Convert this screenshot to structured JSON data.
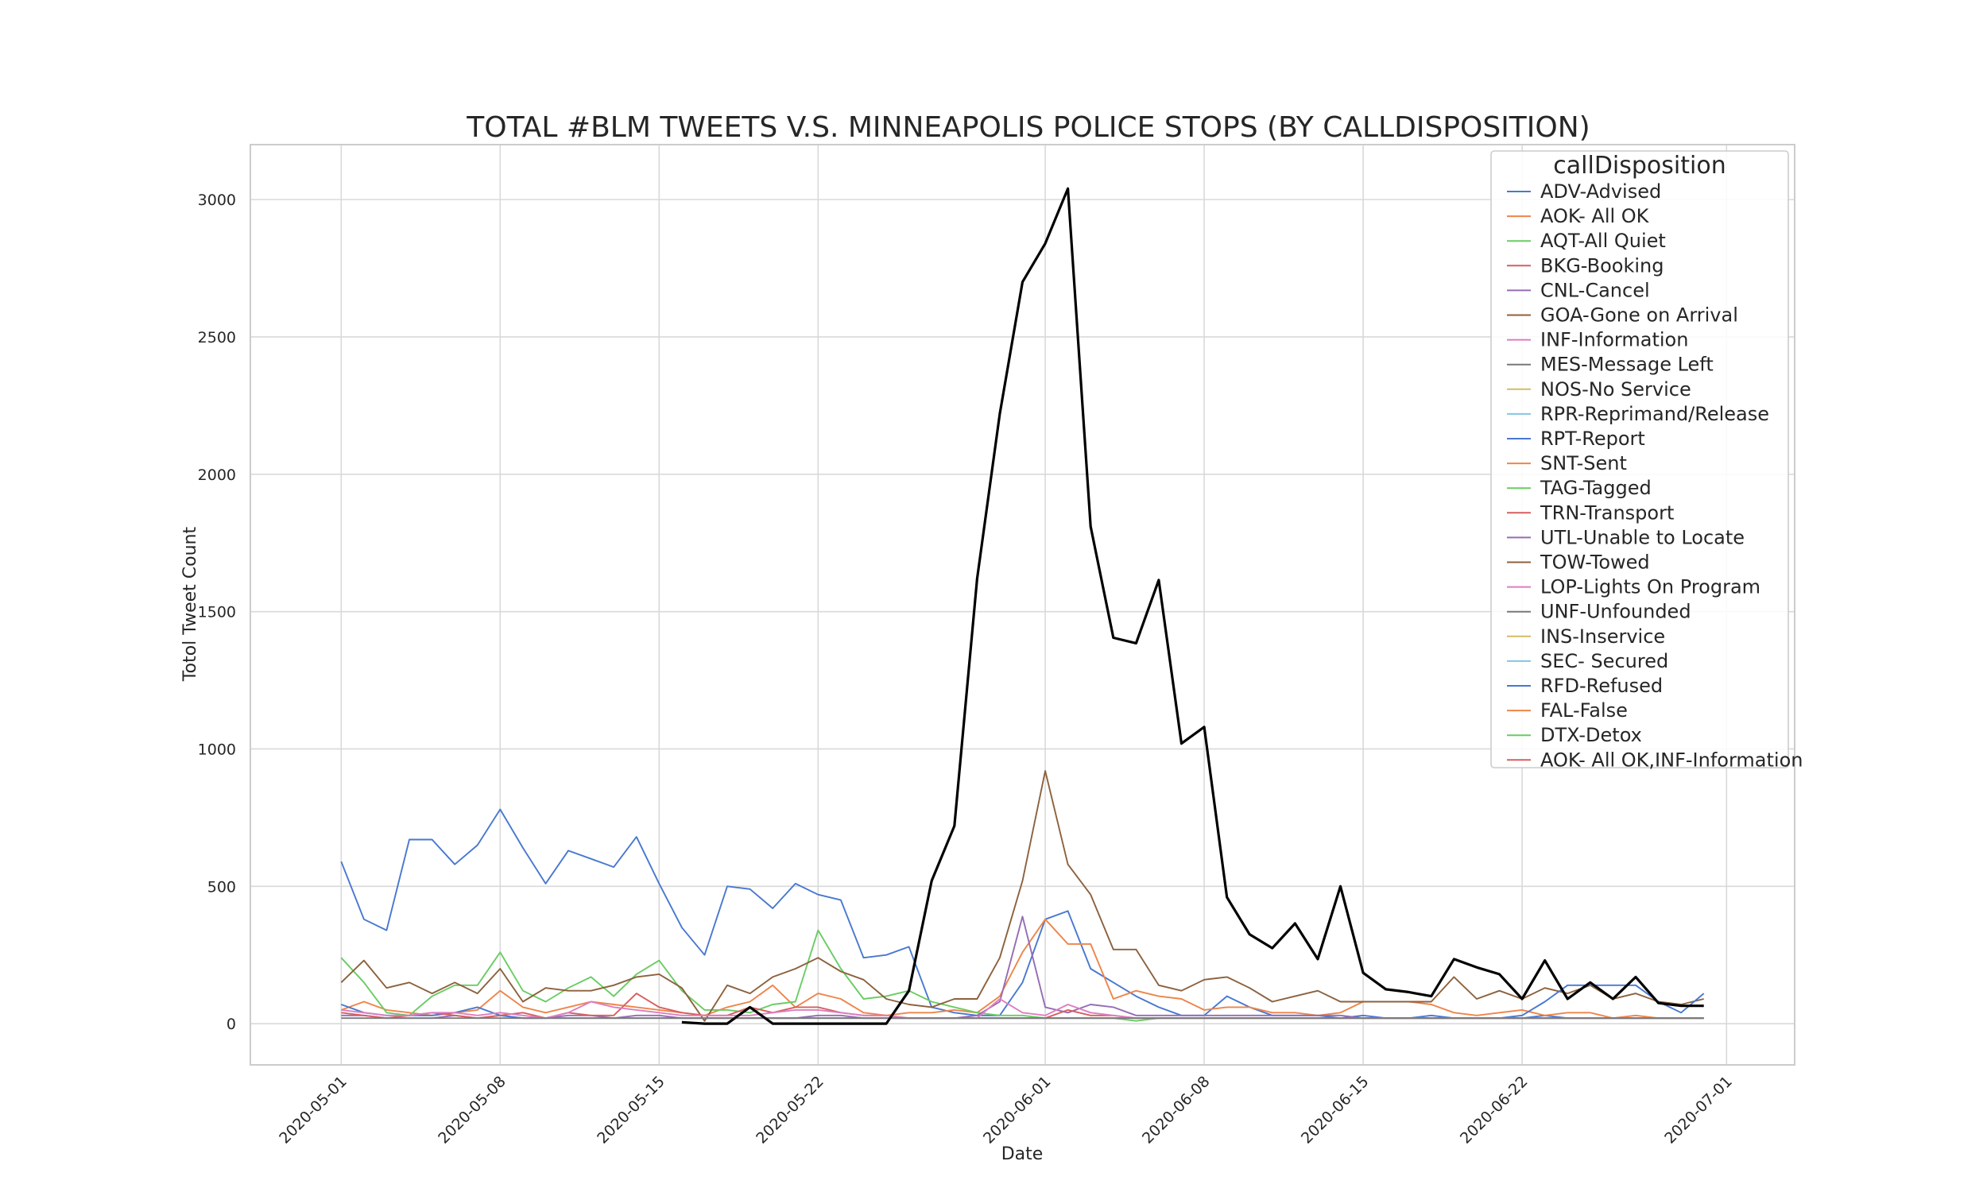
{
  "chart_data": {
    "type": "line",
    "title": "TOTAL #BLM TWEETS V.S. MINNEAPOLIS POLICE STOPS (BY CALLDISPOSITION)",
    "xlabel": "Date",
    "ylabel": "Totol Tweet Count",
    "x_range": [
      "2020-04-27",
      "2020-07-04"
    ],
    "ylim": [
      -150,
      3200
    ],
    "x_ticks": [
      "2020-05-01",
      "2020-05-08",
      "2020-05-15",
      "2020-05-22",
      "2020-06-01",
      "2020-06-08",
      "2020-06-15",
      "2020-06-22",
      "2020-07-01"
    ],
    "y_ticks": [
      0,
      500,
      1000,
      1500,
      2000,
      2500,
      3000
    ],
    "grid": true,
    "legend": {
      "title": "callDisposition",
      "placement": "top-right",
      "entries": [
        {
          "name": "ADV-Advised",
          "color": "#4878d0"
        },
        {
          "name": "AOK- All OK",
          "color": "#ee854a"
        },
        {
          "name": "AQT-All Quiet",
          "color": "#6acc64"
        },
        {
          "name": "BKG-Booking",
          "color": "#d65f5f"
        },
        {
          "name": "CNL-Cancel",
          "color": "#956cb4"
        },
        {
          "name": "GOA-Gone on Arrival",
          "color": "#8c613c"
        },
        {
          "name": "INF-Information",
          "color": "#dc7ec0"
        },
        {
          "name": "MES-Message Left",
          "color": "#797979"
        },
        {
          "name": "NOS-No Service",
          "color": "#d5bb67"
        },
        {
          "name": "RPR-Reprimand/Release",
          "color": "#82c6e2"
        },
        {
          "name": "RPT-Report",
          "color": "#4878d0"
        },
        {
          "name": "SNT-Sent",
          "color": "#ee854a"
        },
        {
          "name": "TAG-Tagged",
          "color": "#6acc64"
        },
        {
          "name": "TRN-Transport",
          "color": "#d65f5f"
        },
        {
          "name": "UTL-Unable to Locate",
          "color": "#956cb4"
        },
        {
          "name": "TOW-Towed",
          "color": "#8c613c"
        },
        {
          "name": "LOP-Lights On Program",
          "color": "#dc7ec0"
        },
        {
          "name": "UNF-Unfounded",
          "color": "#797979"
        },
        {
          "name": "INS-Inservice",
          "color": "#d5bb67"
        },
        {
          "name": "SEC- Secured",
          "color": "#82c6e2"
        },
        {
          "name": "RFD-Refused",
          "color": "#4878d0"
        },
        {
          "name": "FAL-False",
          "color": "#ee854a"
        },
        {
          "name": "DTX-Detox",
          "color": "#6acc64"
        },
        {
          "name": "AOK- All OK,INF-Information",
          "color": "#d65f5f"
        }
      ]
    },
    "series": [
      {
        "name": "ADV-Advised",
        "color": "#4878d0",
        "start": "2020-05-01",
        "values": [
          590,
          380,
          340,
          670,
          670,
          580,
          650,
          780,
          640,
          510,
          630,
          600,
          570,
          680,
          510,
          350,
          250,
          500,
          490,
          420,
          510,
          470,
          450,
          240,
          250,
          280,
          60,
          40,
          30,
          30,
          150,
          380,
          410,
          200,
          150,
          100,
          60,
          30,
          30,
          100,
          60,
          30,
          30,
          30,
          20,
          30,
          20,
          20,
          30,
          20,
          20,
          20,
          20,
          30,
          20,
          20,
          20,
          20,
          20,
          20,
          20
        ]
      },
      {
        "name": "AOK- All OK",
        "color": "#ee854a",
        "start": "2020-05-01",
        "values": [
          50,
          80,
          50,
          40,
          30,
          40,
          50,
          120,
          60,
          40,
          60,
          80,
          70,
          60,
          50,
          40,
          30,
          60,
          80,
          140,
          60,
          110,
          90,
          40,
          30,
          40,
          40,
          50,
          40,
          100,
          260,
          380,
          290,
          290,
          90,
          120,
          100,
          90,
          50,
          60,
          60,
          40,
          40,
          30,
          40,
          80,
          80,
          80,
          70,
          40,
          30,
          40,
          50,
          30,
          40,
          40,
          20,
          30,
          20,
          20,
          20
        ]
      },
      {
        "name": "AQT-All Quiet",
        "color": "#6acc64",
        "start": "2020-05-01",
        "values": [
          240,
          150,
          40,
          30,
          100,
          140,
          140,
          260,
          120,
          80,
          130,
          170,
          100,
          180,
          230,
          120,
          50,
          50,
          40,
          70,
          80,
          340,
          200,
          90,
          100,
          120,
          80,
          60,
          40,
          30,
          30,
          20,
          20,
          20,
          20,
          10,
          20,
          20,
          20,
          20,
          20,
          20,
          20,
          20,
          20,
          20,
          20,
          20,
          20,
          20,
          20,
          20,
          20,
          20,
          20,
          20,
          20,
          20,
          20,
          20,
          20
        ]
      },
      {
        "name": "GOA-Gone on Arrival",
        "color": "#8c613c",
        "start": "2020-05-01",
        "values": [
          150,
          230,
          130,
          150,
          110,
          150,
          110,
          200,
          80,
          130,
          120,
          120,
          140,
          170,
          180,
          130,
          10,
          140,
          110,
          170,
          200,
          240,
          190,
          160,
          90,
          70,
          60,
          90,
          90,
          240,
          520,
          920,
          580,
          470,
          270,
          270,
          140,
          120,
          160,
          170,
          130,
          80,
          100,
          120,
          80,
          80,
          80,
          80,
          80,
          170,
          90,
          120,
          90,
          130,
          110,
          140,
          90,
          110,
          80,
          70,
          90
        ]
      },
      {
        "name": "CNL-Cancel",
        "color": "#956cb4",
        "start": "2020-05-01",
        "values": [
          30,
          30,
          20,
          20,
          20,
          30,
          20,
          30,
          20,
          20,
          30,
          30,
          20,
          30,
          30,
          20,
          20,
          20,
          20,
          20,
          20,
          30,
          30,
          20,
          20,
          20,
          20,
          20,
          30,
          80,
          390,
          60,
          40,
          70,
          60,
          30,
          30,
          30,
          30,
          30,
          30,
          30,
          30,
          30,
          30,
          20,
          20,
          20,
          20,
          20,
          20,
          20,
          20,
          20,
          20,
          20,
          20,
          20,
          20,
          20,
          20
        ]
      },
      {
        "name": "RFD-Refused",
        "color": "#4878d0",
        "start": "2020-05-01",
        "values": [
          70,
          40,
          30,
          30,
          30,
          40,
          60,
          30,
          20,
          20,
          20,
          20,
          20,
          20,
          20,
          20,
          20,
          20,
          20,
          20,
          20,
          20,
          20,
          20,
          20,
          20,
          20,
          20,
          20,
          20,
          20,
          20,
          20,
          20,
          20,
          20,
          20,
          20,
          20,
          20,
          20,
          20,
          20,
          20,
          20,
          20,
          20,
          20,
          20,
          20,
          20,
          20,
          30,
          80,
          140,
          140,
          140,
          140,
          80,
          40,
          110
        ]
      },
      {
        "name": "BKG-Booking",
        "color": "#d65f5f",
        "start": "2020-05-01",
        "values": [
          40,
          30,
          20,
          30,
          40,
          30,
          20,
          30,
          40,
          20,
          40,
          30,
          30,
          110,
          60,
          40,
          30,
          30,
          60,
          40,
          60,
          60,
          40,
          30,
          30,
          20,
          20,
          20,
          20,
          20,
          20,
          20,
          50,
          30,
          30,
          20,
          20,
          20,
          20,
          20,
          20,
          20,
          20,
          20,
          20,
          20,
          20,
          20,
          20,
          20,
          20,
          20,
          20,
          20,
          20,
          20,
          20,
          20,
          20,
          20,
          20
        ]
      },
      {
        "name": "INF-Information",
        "color": "#dc7ec0",
        "start": "2020-05-01",
        "values": [
          50,
          40,
          30,
          30,
          40,
          40,
          30,
          40,
          30,
          20,
          40,
          80,
          60,
          50,
          40,
          30,
          30,
          30,
          30,
          40,
          50,
          50,
          40,
          30,
          30,
          20,
          20,
          20,
          20,
          90,
          40,
          30,
          70,
          40,
          30,
          20,
          20,
          20,
          20,
          20,
          20,
          20,
          20,
          20,
          20,
          20,
          20,
          20,
          20,
          20,
          20,
          20,
          20,
          20,
          20,
          20,
          20,
          20,
          20,
          20,
          20
        ]
      },
      {
        "name": "MES-Message Left",
        "color": "#797979",
        "start": "2020-05-01",
        "values": [
          20,
          20,
          20,
          20,
          20,
          20,
          20,
          20,
          20,
          20,
          20,
          20,
          20,
          20,
          20,
          20,
          20,
          20,
          20,
          20,
          20,
          20,
          20,
          20,
          20,
          20,
          20,
          20,
          20,
          20,
          20,
          20,
          20,
          20,
          20,
          20,
          20,
          20,
          20,
          20,
          20,
          20,
          20,
          20,
          20,
          20,
          20,
          20,
          20,
          20,
          20,
          20,
          20,
          20,
          20,
          20,
          20,
          20,
          20,
          20,
          20
        ]
      },
      {
        "name": "Total #BLM Tweets",
        "color": "#000000",
        "width": 3.2,
        "start": "2020-05-16",
        "values": [
          5,
          0,
          0,
          60,
          0,
          0,
          0,
          0,
          0,
          0,
          120,
          520,
          720,
          1620,
          2220,
          2700,
          2840,
          3040,
          1810,
          1405,
          1385,
          1615,
          1020,
          1080,
          460,
          325,
          275,
          365,
          235,
          500,
          185,
          125,
          115,
          100,
          235,
          205,
          180,
          90,
          230,
          90,
          150,
          90,
          170,
          75,
          65,
          65
        ]
      }
    ]
  }
}
